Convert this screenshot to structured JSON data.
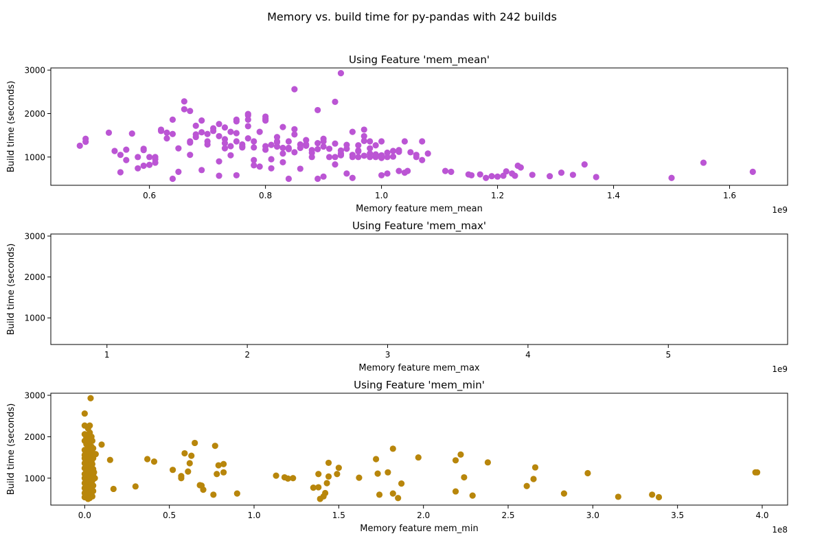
{
  "figure": {
    "suptitle": "Memory vs. build time for py-pandas with 242 builds"
  },
  "chart_data": [
    {
      "type": "scatter",
      "title": "Using Feature 'mem_mean'",
      "xlabel": "Memory feature mem_mean",
      "ylabel": "Build time (seconds)",
      "x_scale_label": "1e9",
      "color": "#bb55d4",
      "xlim": [
        0.43,
        1.7
      ],
      "ylim": [
        350,
        3050
      ],
      "xticks": [
        0.6,
        0.8,
        1.0,
        1.2,
        1.4,
        1.6
      ],
      "xtick_labels": [
        "0.6",
        "0.8",
        "1.0",
        "1.2",
        "1.4",
        "1.6"
      ],
      "yticks": [
        1000,
        2000,
        3000
      ],
      "ytick_labels": [
        "1000",
        "2000",
        "3000"
      ],
      "points": [
        [
          0.48,
          1260
        ],
        [
          0.49,
          1420
        ],
        [
          0.49,
          1350
        ],
        [
          0.53,
          1560
        ],
        [
          0.54,
          1140
        ],
        [
          0.55,
          1050
        ],
        [
          0.55,
          650
        ],
        [
          0.56,
          930
        ],
        [
          0.56,
          1170
        ],
        [
          0.57,
          1540
        ],
        [
          0.58,
          740
        ],
        [
          0.58,
          1000
        ],
        [
          0.59,
          1190
        ],
        [
          0.59,
          800
        ],
        [
          0.59,
          1160
        ],
        [
          0.6,
          1000
        ],
        [
          0.6,
          820
        ],
        [
          0.61,
          870
        ],
        [
          0.61,
          950
        ],
        [
          0.61,
          1000
        ],
        [
          0.62,
          1600
        ],
        [
          0.62,
          1630
        ],
        [
          0.63,
          1430
        ],
        [
          0.63,
          1560
        ],
        [
          0.64,
          1860
        ],
        [
          0.64,
          1530
        ],
        [
          0.64,
          500
        ],
        [
          0.65,
          1200
        ],
        [
          0.65,
          660
        ],
        [
          0.66,
          2100
        ],
        [
          0.66,
          2280
        ],
        [
          0.67,
          2060
        ],
        [
          0.67,
          1330
        ],
        [
          0.67,
          1360
        ],
        [
          0.67,
          1050
        ],
        [
          0.68,
          1720
        ],
        [
          0.68,
          1520
        ],
        [
          0.68,
          1460
        ],
        [
          0.69,
          1840
        ],
        [
          0.69,
          1570
        ],
        [
          0.69,
          700
        ],
        [
          0.7,
          1360
        ],
        [
          0.7,
          1290
        ],
        [
          0.7,
          1530
        ],
        [
          0.71,
          1600
        ],
        [
          0.71,
          1660
        ],
        [
          0.72,
          1760
        ],
        [
          0.72,
          1480
        ],
        [
          0.72,
          900
        ],
        [
          0.72,
          570
        ],
        [
          0.73,
          1680
        ],
        [
          0.73,
          1410
        ],
        [
          0.73,
          1320
        ],
        [
          0.73,
          1200
        ],
        [
          0.74,
          1250
        ],
        [
          0.74,
          1580
        ],
        [
          0.74,
          1040
        ],
        [
          0.75,
          1820
        ],
        [
          0.75,
          1860
        ],
        [
          0.75,
          1550
        ],
        [
          0.75,
          1360
        ],
        [
          0.75,
          580
        ],
        [
          0.76,
          1240
        ],
        [
          0.76,
          1290
        ],
        [
          0.76,
          1220
        ],
        [
          0.77,
          1960
        ],
        [
          0.77,
          1990
        ],
        [
          0.77,
          1860
        ],
        [
          0.77,
          1710
        ],
        [
          0.77,
          1430
        ],
        [
          0.78,
          1360
        ],
        [
          0.78,
          1220
        ],
        [
          0.78,
          930
        ],
        [
          0.78,
          810
        ],
        [
          0.79,
          780
        ],
        [
          0.79,
          1580
        ],
        [
          0.8,
          1840
        ],
        [
          0.8,
          1880
        ],
        [
          0.8,
          1930
        ],
        [
          0.8,
          1250
        ],
        [
          0.8,
          1170
        ],
        [
          0.81,
          950
        ],
        [
          0.81,
          740
        ],
        [
          0.81,
          1280
        ],
        [
          0.82,
          1460
        ],
        [
          0.82,
          1360
        ],
        [
          0.82,
          1240
        ],
        [
          0.82,
          1340
        ],
        [
          0.83,
          1690
        ],
        [
          0.83,
          880
        ],
        [
          0.83,
          1210
        ],
        [
          0.83,
          1080
        ],
        [
          0.84,
          1360
        ],
        [
          0.84,
          500
        ],
        [
          0.84,
          1180
        ],
        [
          0.84,
          1210
        ],
        [
          0.85,
          2560
        ],
        [
          0.85,
          1640
        ],
        [
          0.85,
          1520
        ],
        [
          0.85,
          1110
        ],
        [
          0.86,
          1290
        ],
        [
          0.86,
          1210
        ],
        [
          0.86,
          730
        ],
        [
          0.87,
          1390
        ],
        [
          0.87,
          1290
        ],
        [
          0.87,
          1260
        ],
        [
          0.88,
          1160
        ],
        [
          0.88,
          1100
        ],
        [
          0.88,
          1000
        ],
        [
          0.89,
          2080
        ],
        [
          0.89,
          1320
        ],
        [
          0.89,
          1180
        ],
        [
          0.89,
          500
        ],
        [
          0.9,
          1240
        ],
        [
          0.9,
          1360
        ],
        [
          0.9,
          1420
        ],
        [
          0.9,
          550
        ],
        [
          0.91,
          1000
        ],
        [
          0.91,
          1190
        ],
        [
          0.92,
          2270
        ],
        [
          0.92,
          1310
        ],
        [
          0.92,
          1000
        ],
        [
          0.92,
          830
        ],
        [
          0.93,
          1050
        ],
        [
          0.93,
          1080
        ],
        [
          0.93,
          1150
        ],
        [
          0.93,
          1040
        ],
        [
          0.94,
          620
        ],
        [
          0.94,
          1190
        ],
        [
          0.94,
          1280
        ],
        [
          0.95,
          1580
        ],
        [
          0.95,
          1050
        ],
        [
          0.95,
          1000
        ],
        [
          0.96,
          1270
        ],
        [
          0.96,
          1150
        ],
        [
          0.96,
          1000
        ],
        [
          0.97,
          1630
        ],
        [
          0.97,
          1480
        ],
        [
          0.97,
          1030
        ],
        [
          0.98,
          1080
        ],
        [
          0.98,
          1200
        ],
        [
          0.98,
          1000
        ],
        [
          0.99,
          1030
        ],
        [
          0.99,
          1270
        ],
        [
          0.99,
          1000
        ],
        [
          1.0,
          1360
        ],
        [
          1.0,
          1040
        ],
        [
          1.0,
          980
        ],
        [
          1.01,
          1100
        ],
        [
          1.01,
          1000
        ],
        [
          1.02,
          1140
        ],
        [
          1.02,
          1010
        ],
        [
          1.03,
          1160
        ],
        [
          1.03,
          680
        ],
        [
          1.04,
          1360
        ],
        [
          1.05,
          1110
        ],
        [
          1.06,
          1050
        ],
        [
          1.06,
          1000
        ],
        [
          1.07,
          1360
        ],
        [
          1.08,
          1080
        ],
        [
          0.93,
          2930
        ],
        [
          0.95,
          520
        ],
        [
          0.96,
          1130
        ],
        [
          0.97,
          1370
        ],
        [
          0.98,
          1360
        ],
        [
          0.99,
          1060
        ],
        [
          1.0,
          580
        ],
        [
          1.01,
          620
        ],
        [
          1.03,
          1120
        ],
        [
          1.04,
          640
        ],
        [
          1.045,
          680
        ],
        [
          1.07,
          930
        ],
        [
          1.11,
          680
        ],
        [
          1.12,
          660
        ],
        [
          1.15,
          600
        ],
        [
          1.155,
          580
        ],
        [
          1.17,
          600
        ],
        [
          1.18,
          520
        ],
        [
          1.19,
          560
        ],
        [
          1.2,
          550
        ],
        [
          1.21,
          570
        ],
        [
          1.215,
          670
        ],
        [
          1.225,
          620
        ],
        [
          1.23,
          570
        ],
        [
          1.235,
          800
        ],
        [
          1.24,
          760
        ],
        [
          1.26,
          590
        ],
        [
          1.29,
          560
        ],
        [
          1.31,
          640
        ],
        [
          1.33,
          590
        ],
        [
          1.35,
          830
        ],
        [
          1.37,
          540
        ],
        [
          1.5,
          520
        ],
        [
          1.555,
          870
        ],
        [
          1.64,
          660
        ]
      ]
    },
    {
      "type": "scatter",
      "title": "Using Feature 'mem_max'",
      "xlabel": "Memory feature mem_max",
      "ylabel": "Build time (seconds)",
      "x_scale_label": "1e9",
      "color": "#1f77b4",
      "xlim": [
        0.6,
        5.85
      ],
      "ylim": [
        350,
        3050
      ],
      "xticks": [
        1,
        2,
        3,
        4,
        5
      ],
      "xtick_labels": [
        "1",
        "2",
        "3",
        "4",
        "5"
      ],
      "yticks": [
        1000,
        2000,
        3000
      ],
      "ytick_labels": [
        "1000",
        "2000",
        "3000"
      ],
      "points": []
    },
    {
      "type": "scatter",
      "title": "Using Feature 'mem_min'",
      "xlabel": "Memory feature mem_min",
      "ylabel": "Build time (seconds)",
      "x_scale_label": "1e8",
      "color": "#b8860b",
      "xlim": [
        -0.2,
        4.15
      ],
      "ylim": [
        350,
        3050
      ],
      "xticks": [
        0.0,
        0.5,
        1.0,
        1.5,
        2.0,
        2.5,
        3.0,
        3.5,
        4.0
      ],
      "xtick_labels": [
        "0.0",
        "0.5",
        "1.0",
        "1.5",
        "2.0",
        "2.5",
        "3.0",
        "3.5",
        "4.0"
      ],
      "yticks": [
        1000,
        2000,
        3000
      ],
      "ytick_labels": [
        "1000",
        "2000",
        "3000"
      ],
      "points": [
        [
          0.0,
          2560
        ],
        [
          0.0,
          2270
        ],
        [
          0.0,
          2060
        ],
        [
          0.0,
          1900
        ],
        [
          0.0,
          1680
        ],
        [
          0.0,
          1560
        ],
        [
          0.0,
          1480
        ],
        [
          0.0,
          1360
        ],
        [
          0.0,
          1240
        ],
        [
          0.0,
          1100
        ],
        [
          0.0,
          1000
        ],
        [
          0.0,
          880
        ],
        [
          0.0,
          760
        ],
        [
          0.0,
          640
        ],
        [
          0.0,
          540
        ],
        [
          0.01,
          1980
        ],
        [
          0.01,
          1820
        ],
        [
          0.01,
          1620
        ],
        [
          0.01,
          1420
        ],
        [
          0.01,
          1300
        ],
        [
          0.01,
          1160
        ],
        [
          0.01,
          1050
        ],
        [
          0.01,
          920
        ],
        [
          0.01,
          800
        ],
        [
          0.01,
          680
        ],
        [
          0.01,
          560
        ],
        [
          0.02,
          2200
        ],
        [
          0.02,
          1940
        ],
        [
          0.02,
          1700
        ],
        [
          0.02,
          1510
        ],
        [
          0.02,
          1380
        ],
        [
          0.02,
          1200
        ],
        [
          0.02,
          1080
        ],
        [
          0.02,
          960
        ],
        [
          0.02,
          840
        ],
        [
          0.02,
          700
        ],
        [
          0.02,
          600
        ],
        [
          0.02,
          500
        ],
        [
          0.03,
          2270
        ],
        [
          0.03,
          2100
        ],
        [
          0.03,
          1880
        ],
        [
          0.03,
          1640
        ],
        [
          0.03,
          1460
        ],
        [
          0.03,
          1320
        ],
        [
          0.03,
          1140
        ],
        [
          0.03,
          1020
        ],
        [
          0.03,
          900
        ],
        [
          0.03,
          780
        ],
        [
          0.03,
          650
        ],
        [
          0.03,
          520
        ],
        [
          0.04,
          2000
        ],
        [
          0.04,
          1760
        ],
        [
          0.04,
          1560
        ],
        [
          0.04,
          1400
        ],
        [
          0.04,
          1260
        ],
        [
          0.04,
          1100
        ],
        [
          0.04,
          980
        ],
        [
          0.04,
          860
        ],
        [
          0.04,
          720
        ],
        [
          0.04,
          600
        ],
        [
          0.035,
          2930
        ],
        [
          0.045,
          1900
        ],
        [
          0.045,
          1620
        ],
        [
          0.045,
          1340
        ],
        [
          0.045,
          1180
        ],
        [
          0.045,
          1060
        ],
        [
          0.045,
          940
        ],
        [
          0.045,
          560
        ],
        [
          0.05,
          1720
        ],
        [
          0.05,
          1480
        ],
        [
          0.05,
          1220
        ],
        [
          0.05,
          1080
        ],
        [
          0.05,
          820
        ],
        [
          0.05,
          690
        ],
        [
          0.055,
          1560
        ],
        [
          0.055,
          1140
        ],
        [
          0.06,
          1000
        ],
        [
          0.065,
          1580
        ],
        [
          0.1,
          1810
        ],
        [
          0.15,
          1440
        ],
        [
          0.17,
          740
        ],
        [
          0.3,
          800
        ],
        [
          0.37,
          1460
        ],
        [
          0.41,
          1400
        ],
        [
          0.52,
          1200
        ],
        [
          0.57,
          1000
        ],
        [
          0.57,
          1050
        ],
        [
          0.59,
          1600
        ],
        [
          0.61,
          1160
        ],
        [
          0.62,
          1360
        ],
        [
          0.63,
          1540
        ],
        [
          0.65,
          1850
        ],
        [
          0.68,
          830
        ],
        [
          0.69,
          820
        ],
        [
          0.7,
          720
        ],
        [
          0.76,
          600
        ],
        [
          0.77,
          1780
        ],
        [
          0.78,
          1100
        ],
        [
          0.79,
          1310
        ],
        [
          0.82,
          1140
        ],
        [
          0.82,
          1340
        ],
        [
          0.9,
          630
        ],
        [
          1.13,
          1060
        ],
        [
          1.18,
          1020
        ],
        [
          1.2,
          990
        ],
        [
          1.23,
          1000
        ],
        [
          1.35,
          770
        ],
        [
          1.38,
          780
        ],
        [
          1.38,
          1100
        ],
        [
          1.39,
          500
        ],
        [
          1.41,
          560
        ],
        [
          1.42,
          640
        ],
        [
          1.43,
          880
        ],
        [
          1.44,
          1040
        ],
        [
          1.44,
          1370
        ],
        [
          1.49,
          1100
        ],
        [
          1.5,
          1250
        ],
        [
          1.62,
          1010
        ],
        [
          1.72,
          1460
        ],
        [
          1.73,
          1110
        ],
        [
          1.74,
          600
        ],
        [
          1.79,
          1140
        ],
        [
          1.82,
          1710
        ],
        [
          1.82,
          630
        ],
        [
          1.85,
          520
        ],
        [
          1.87,
          870
        ],
        [
          1.97,
          1500
        ],
        [
          2.19,
          1430
        ],
        [
          2.19,
          680
        ],
        [
          2.22,
          1570
        ],
        [
          2.24,
          1020
        ],
        [
          2.29,
          580
        ],
        [
          2.38,
          1380
        ],
        [
          2.61,
          810
        ],
        [
          2.65,
          980
        ],
        [
          2.66,
          1260
        ],
        [
          2.83,
          630
        ],
        [
          2.97,
          1120
        ],
        [
          3.15,
          550
        ],
        [
          3.35,
          600
        ],
        [
          3.39,
          540
        ],
        [
          3.96,
          1140
        ],
        [
          3.97,
          1140
        ]
      ]
    }
  ]
}
